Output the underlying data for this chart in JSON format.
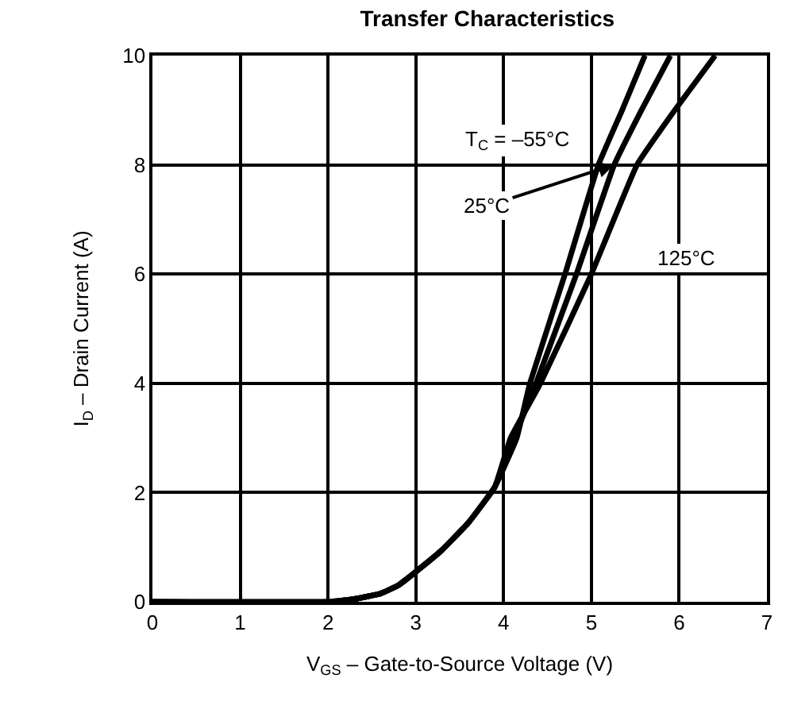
{
  "chart_data": {
    "type": "line",
    "title": "Transfer Characteristics",
    "xlabel": "V$_{GS}$ – Gate-to-Source Voltage (V)",
    "ylabel": "I$_{D}$ – Drain Current (A)",
    "xlim": [
      0,
      7
    ],
    "xticks": [
      0,
      1,
      2,
      3,
      4,
      5,
      6,
      7
    ],
    "ylim": [
      0,
      10
    ],
    "yticks": [
      0,
      2,
      4,
      6,
      8,
      10
    ],
    "grid": true,
    "line_style": "solid",
    "marker": "none",
    "series": [
      {
        "color": "#000000",
        "x": [
          0,
          2.0,
          2.3,
          2.6,
          2.8,
          3.0,
          3.3,
          3.6,
          3.9,
          4.15,
          4.3,
          4.7,
          5.08,
          5.35,
          5.61
        ],
        "values": [
          0,
          0,
          0.05,
          0.15,
          0.3,
          0.55,
          0.95,
          1.45,
          2.1,
          3.0,
          4.0,
          6.0,
          8.0,
          9.0,
          10
        ]
      },
      {
        "color": "#000000",
        "x": [
          0,
          2.0,
          2.3,
          2.6,
          2.8,
          3.0,
          3.3,
          3.6,
          3.9,
          4.12,
          4.37,
          4.83,
          5.26,
          5.57,
          5.9
        ],
        "values": [
          0,
          0,
          0.05,
          0.15,
          0.3,
          0.55,
          0.95,
          1.45,
          2.1,
          3.0,
          4.0,
          6.0,
          8.0,
          9.0,
          10
        ]
      },
      {
        "color": "#000000",
        "x": [
          0,
          2.0,
          2.3,
          2.6,
          2.8,
          3.0,
          3.3,
          3.6,
          3.9,
          4.08,
          4.42,
          5.0,
          5.52,
          5.95,
          6.41
        ],
        "values": [
          0,
          0,
          0.05,
          0.15,
          0.3,
          0.55,
          0.95,
          1.45,
          2.1,
          3.0,
          4.0,
          6.0,
          8.0,
          9.0,
          10
        ]
      }
    ],
    "annotations": [
      "T$_{C}$ = –55°C",
      {
        "text": "25°C",
        "x": 5.26,
        "y": 8.0
      },
      {
        "text": "125°C",
        "x": 6.07,
        "y": 6.3
      }
    ]
  }
}
